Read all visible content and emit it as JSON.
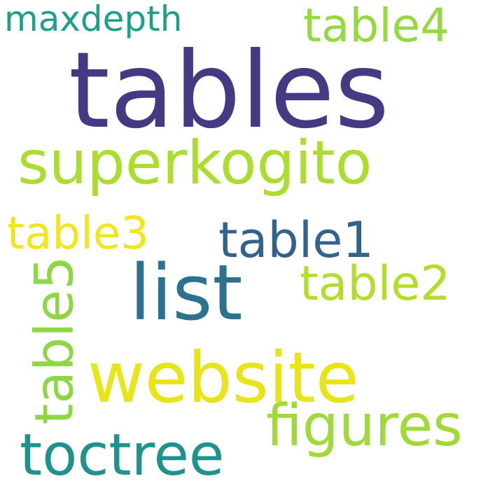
{
  "cloud": {
    "words": {
      "tables": "tables",
      "superkogito": "superkogito",
      "maxdepth": "maxdepth",
      "table4": "table4",
      "table3": "table3",
      "table1": "table1",
      "list": "list",
      "table2": "table2",
      "website": "website",
      "figures": "figures",
      "toctree": "toctree",
      "table5": "table5"
    },
    "colors": {
      "tables": "#443a83",
      "superkogito": "#addc30",
      "maxdepth": "#1f9e89",
      "table4": "#95d840",
      "table3": "#f1e51d",
      "table1": "#33638d",
      "list": "#2c728e",
      "table2": "#b2dd2d",
      "website": "#e7e419",
      "figures": "#a0da39",
      "toctree": "#20928c",
      "table5": "#8ed645"
    }
  }
}
